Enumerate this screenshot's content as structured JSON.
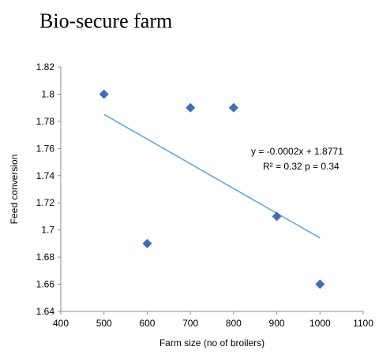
{
  "chart_data": {
    "type": "scatter",
    "title": "Bio-secure farm",
    "xlabel": "Farm size (no of broilers)",
    "ylabel": "Feed conversion",
    "xlim": [
      400,
      1100
    ],
    "ylim": [
      1.64,
      1.82
    ],
    "x_ticks": [
      "400",
      "500",
      "600",
      "700",
      "800",
      "900",
      "1000",
      "1100"
    ],
    "y_ticks": [
      "1.64",
      "1.66",
      "1.68",
      "1.7",
      "1.72",
      "1.74",
      "1.76",
      "1.78",
      "1.8",
      "1.82"
    ],
    "grid": false,
    "legend": "none",
    "points": [
      {
        "x": 500,
        "y": 1.8
      },
      {
        "x": 600,
        "y": 1.69
      },
      {
        "x": 700,
        "y": 1.79
      },
      {
        "x": 800,
        "y": 1.79
      },
      {
        "x": 900,
        "y": 1.71
      },
      {
        "x": 1000,
        "y": 1.66
      }
    ],
    "trendline": {
      "x_start": 500,
      "y_start": 1.7851,
      "x_end": 1000,
      "y_end": 1.6941,
      "equation": "y = -0.0002x + 1.8771",
      "stats": "R² = 0.32 p = 0.34"
    },
    "colors": {
      "marker": "#3a6fc0",
      "trendline": "#62a8da",
      "axis": "#8c8c8c"
    }
  }
}
